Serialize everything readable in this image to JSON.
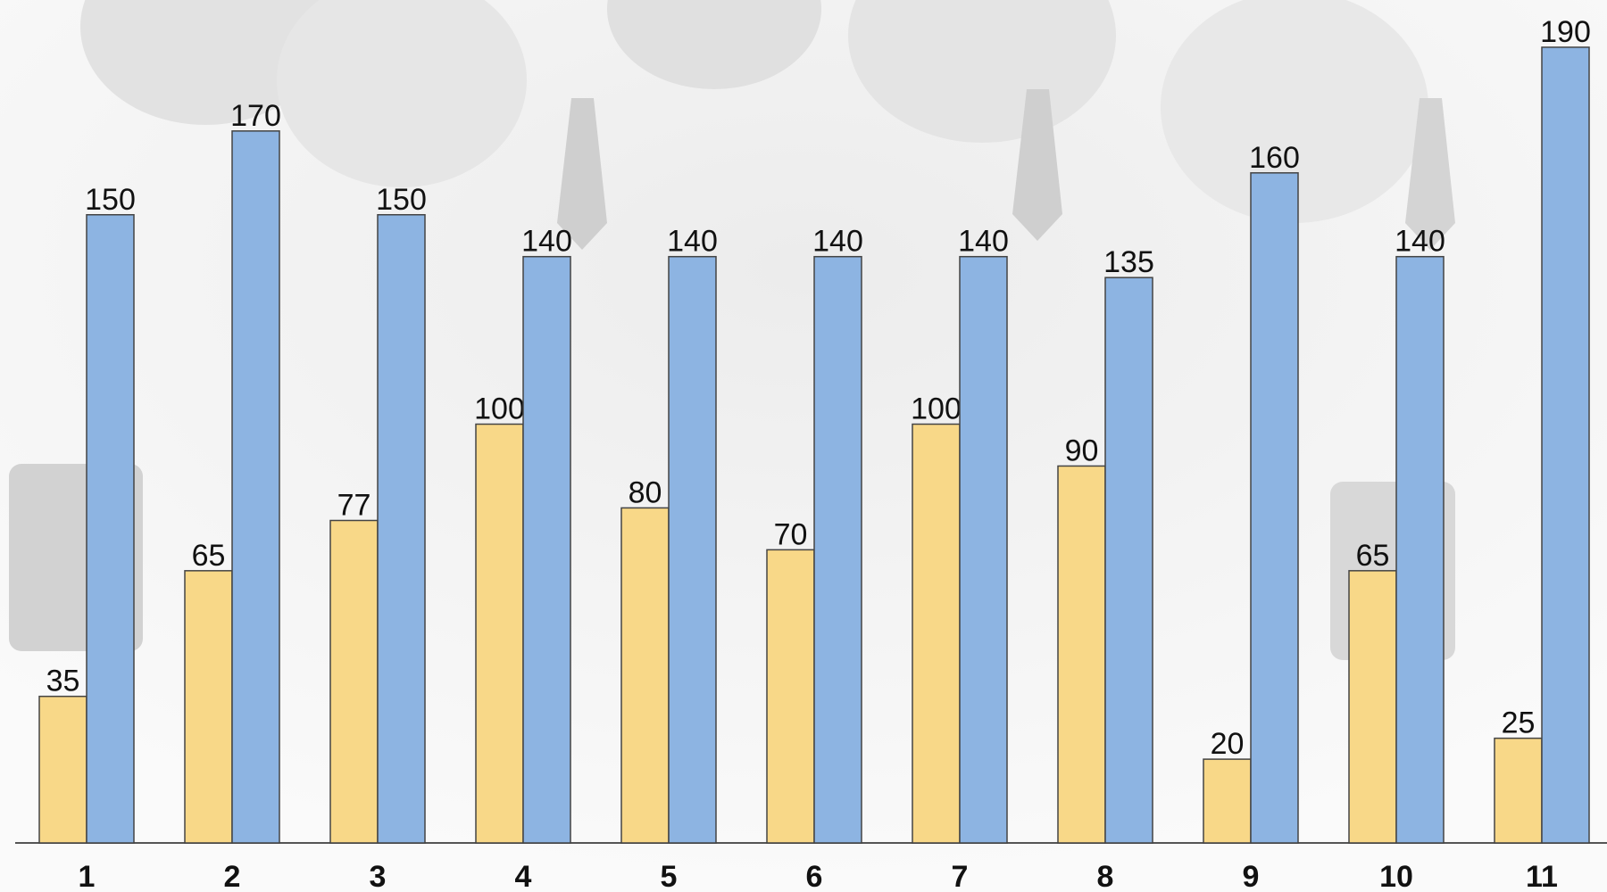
{
  "chart_data": {
    "type": "bar",
    "categories": [
      "1",
      "2",
      "3",
      "4",
      "5",
      "6",
      "7",
      "8",
      "9",
      "10",
      "11"
    ],
    "series": [
      {
        "color": "#f8d888",
        "values": [
          35,
          65,
          77,
          100,
          80,
          70,
          100,
          90,
          20,
          65,
          25
        ]
      },
      {
        "color": "#8db4e2",
        "values": [
          150,
          170,
          150,
          140,
          140,
          140,
          140,
          135,
          160,
          140,
          190
        ]
      }
    ],
    "ylim": [
      0,
      200
    ]
  }
}
